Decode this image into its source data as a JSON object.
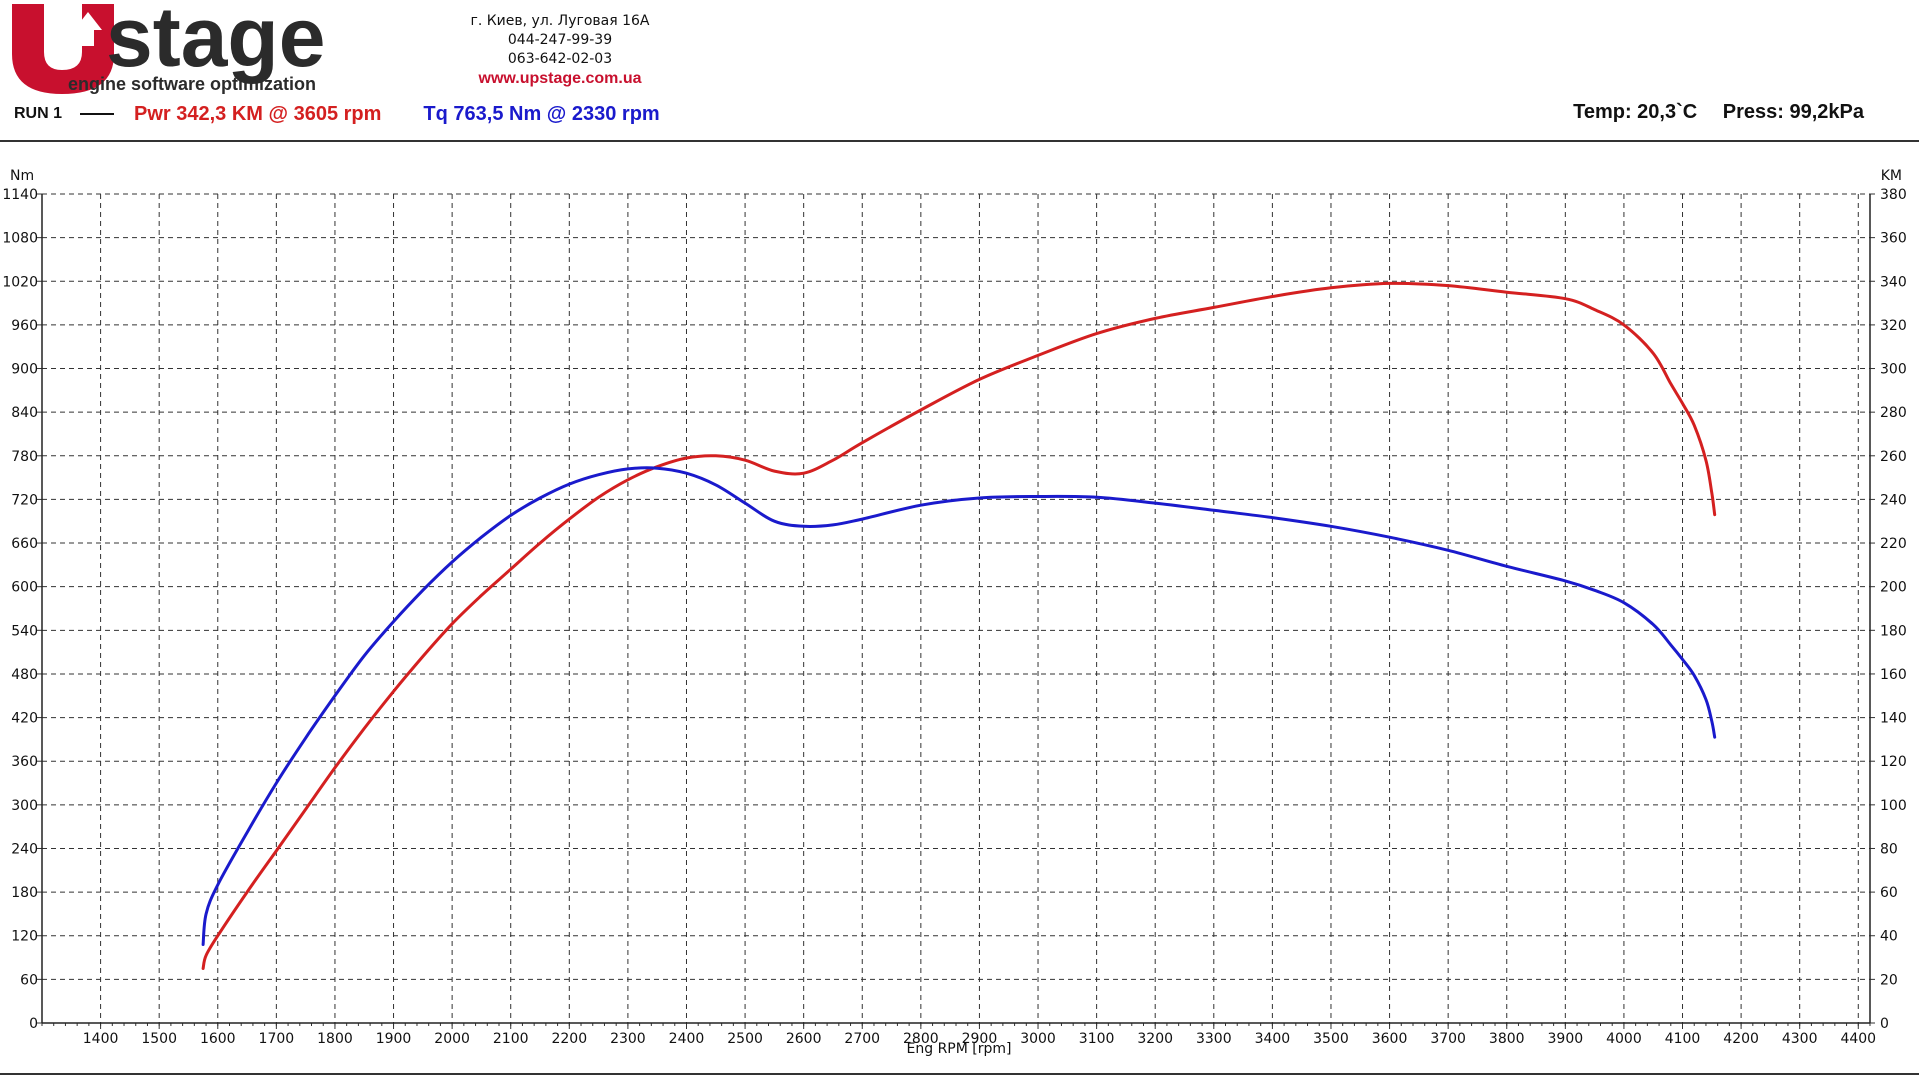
{
  "header": {
    "brand": "stage",
    "brand_prefix": "U",
    "tagline": "engine software optimization",
    "address": "г. Киев, ул. Луговая 16А",
    "phone1": "044-247-99-39",
    "phone2": "063-642-02-03",
    "website": "www.upstage.com.ua",
    "run_label": "RUN 1",
    "pwr_summary": "Pwr  342,3 KM @ 3605 rpm",
    "tq_summary": "Tq 763,5 Nm @ 2330 rpm",
    "temp": "Temp: 20,3`C",
    "press": "Press: 99,2kPa"
  },
  "colors": {
    "power": "#d42020",
    "torque": "#1a1acc",
    "brand": "#c8102e",
    "brand_text": "#2b2b2b"
  },
  "chart_data": {
    "type": "line",
    "xlabel": "Eng RPM [rpm]",
    "ylabel_left": "Nm",
    "ylabel_right": "KM",
    "xlim": [
      1300,
      4420
    ],
    "ylim_left": [
      0,
      1140
    ],
    "ylim_right": [
      0,
      380
    ],
    "x_ticks": [
      1400,
      1500,
      1600,
      1700,
      1800,
      1900,
      2000,
      2100,
      2200,
      2300,
      2400,
      2500,
      2600,
      2700,
      2800,
      2900,
      3000,
      3100,
      3200,
      3300,
      3400,
      3500,
      3600,
      3700,
      3800,
      3900,
      4000,
      4100,
      4200,
      4300,
      4400
    ],
    "y_ticks_left": [
      0,
      60,
      120,
      180,
      240,
      300,
      360,
      420,
      480,
      540,
      600,
      660,
      720,
      780,
      840,
      900,
      960,
      1020,
      1080,
      1140
    ],
    "y_ticks_right": [
      0,
      20,
      40,
      60,
      80,
      100,
      120,
      140,
      160,
      180,
      200,
      220,
      240,
      260,
      280,
      300,
      320,
      340,
      360,
      380
    ],
    "grid": true,
    "series": [
      {
        "axis": "right",
        "color": "#d42020",
        "x": [
          1575,
          1580,
          1600,
          1650,
          1700,
          1750,
          1800,
          1850,
          1900,
          1950,
          2000,
          2050,
          2100,
          2150,
          2200,
          2250,
          2300,
          2350,
          2400,
          2450,
          2500,
          2550,
          2600,
          2650,
          2700,
          2800,
          2900,
          3000,
          3100,
          3200,
          3300,
          3400,
          3500,
          3600,
          3700,
          3800,
          3900,
          3950,
          4000,
          4050,
          4080,
          4100,
          4120,
          4140,
          4150,
          4155
        ],
        "y": [
          25,
          31,
          40,
          60,
          79,
          98,
          117,
          135,
          152,
          168,
          183,
          196,
          208,
          220,
          231,
          241,
          249,
          255,
          259,
          260,
          258,
          253,
          252,
          258,
          266,
          281,
          295,
          306,
          316,
          323,
          328,
          333,
          337,
          339,
          338,
          335,
          332,
          327,
          320,
          307,
          293,
          284,
          274,
          258,
          243,
          233
        ]
      },
      {
        "axis": "left",
        "color": "#1a1acc",
        "x": [
          1575,
          1580,
          1600,
          1650,
          1700,
          1750,
          1800,
          1850,
          1900,
          1950,
          2000,
          2050,
          2100,
          2150,
          2200,
          2250,
          2300,
          2350,
          2400,
          2450,
          2500,
          2550,
          2600,
          2650,
          2700,
          2800,
          2900,
          3000,
          3100,
          3200,
          3300,
          3400,
          3500,
          3600,
          3700,
          3800,
          3900,
          3950,
          4000,
          4050,
          4080,
          4100,
          4120,
          4140,
          4150,
          4155
        ],
        "y": [
          108,
          150,
          190,
          262,
          330,
          392,
          450,
          505,
          552,
          595,
          634,
          668,
          698,
          722,
          741,
          754,
          762,
          763,
          756,
          740,
          715,
          690,
          683,
          685,
          693,
          712,
          722,
          724,
          723,
          715,
          705,
          695,
          683,
          668,
          650,
          628,
          608,
          595,
          578,
          548,
          520,
          500,
          478,
          445,
          415,
          393
        ]
      }
    ]
  }
}
